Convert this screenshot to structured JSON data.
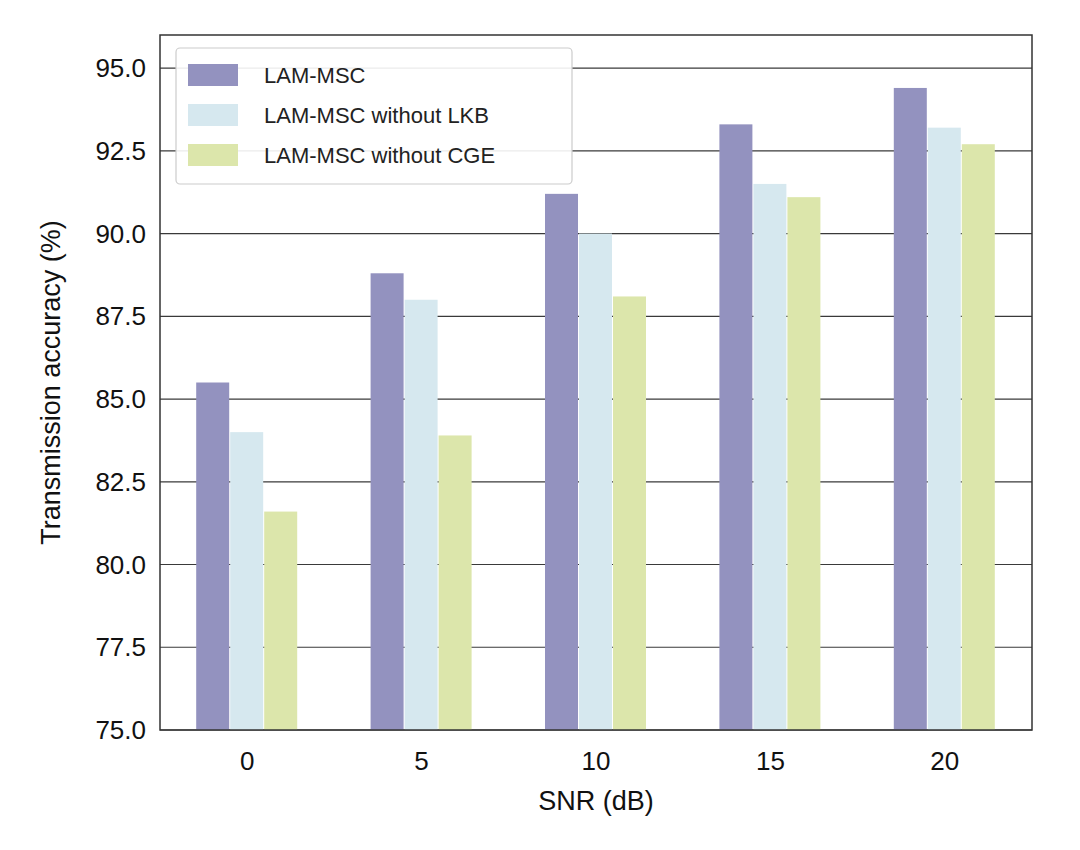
{
  "chart_data": {
    "type": "bar",
    "x_label": "SNR (dB)",
    "y_label": "Transmission accuracy (%)",
    "categories": [
      "0",
      "5",
      "10",
      "15",
      "20"
    ],
    "series": [
      {
        "name": "LAM-MSC",
        "color": "#9392bf",
        "values": [
          85.5,
          88.8,
          91.2,
          93.3,
          94.4
        ]
      },
      {
        "name": "LAM-MSC without LKB",
        "color": "#d6e8ef",
        "values": [
          84.0,
          88.0,
          90.0,
          91.5,
          93.2
        ]
      },
      {
        "name": "LAM-MSC without CGE",
        "color": "#dce6ab",
        "values": [
          81.6,
          83.9,
          88.1,
          91.1,
          92.7
        ]
      }
    ],
    "ylim": [
      75,
      96
    ],
    "yticks": [
      {
        "value": 75,
        "label": "75.0"
      },
      77.5,
      {
        "value": 80,
        "label": "80.0"
      },
      82.5,
      {
        "value": 85,
        "label": "85.0"
      },
      87.5,
      {
        "value": 90,
        "label": "90.0"
      },
      92.5,
      {
        "value": 95,
        "label": "95.0"
      }
    ],
    "grid": true,
    "legend": "upper-left"
  }
}
